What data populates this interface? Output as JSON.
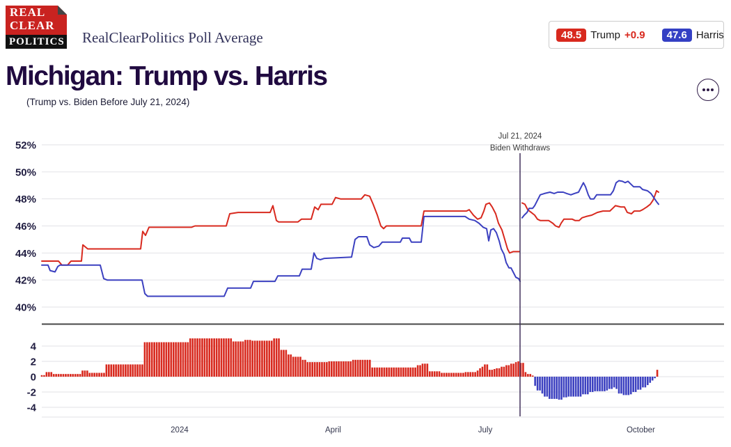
{
  "header": {
    "logo": {
      "line1": "REAL",
      "line2": "CLEAR",
      "line3": "POLITICS"
    },
    "masthead": "RealClearPolitics Poll Average",
    "legend": {
      "trump_value": "48.5",
      "trump_label": "Trump",
      "trump_lead": "+0.9",
      "harris_value": "47.6",
      "harris_label": "Harris"
    }
  },
  "title": "Michigan: Trump vs. Harris",
  "title_note": "(Trump vs. Biden Before July 21, 2024)",
  "colors": {
    "trump": "#d8291e",
    "harris": "#3b40c0",
    "grid": "#e2e2e6",
    "divider": "#474747",
    "event_line": "#40305a"
  },
  "chart_data": {
    "type": "line",
    "title": "Michigan: Trump vs. Harris poll average with spread bars",
    "legend_position": "top-right",
    "grid": true,
    "event_line": {
      "x": 0.701,
      "label_line1": "Jul 21, 2024",
      "label_line2": "Biden Withdraws"
    },
    "y_axis_main": {
      "ticks": [
        "52%",
        "50%",
        "48%",
        "46%",
        "44%",
        "42%",
        "40%"
      ],
      "values": [
        52,
        50,
        48,
        46,
        44,
        42,
        40
      ],
      "range": [
        40,
        52
      ]
    },
    "y_axis_spread": {
      "ticks": [
        "4",
        "2",
        "0",
        "-2",
        "-4"
      ],
      "values": [
        4,
        2,
        0,
        -2,
        -4
      ],
      "range": [
        -5,
        6
      ]
    },
    "x_axis": {
      "labels": [
        {
          "text": "2024",
          "x": 0.202
        },
        {
          "text": "April",
          "x": 0.427
        },
        {
          "text": "July",
          "x": 0.65
        },
        {
          "text": "October",
          "x": 0.878
        }
      ]
    },
    "series": [
      {
        "name": "Trump (vs. Biden, before Jul 21)",
        "color_key": "trump",
        "points": [
          [
            0.0,
            43.4
          ],
          [
            0.0245,
            43.4
          ],
          [
            0.0296,
            43.1
          ],
          [
            0.0378,
            43.1
          ],
          [
            0.0429,
            43.4
          ],
          [
            0.0582,
            43.4
          ],
          [
            0.0602,
            44.6
          ],
          [
            0.0673,
            44.3
          ],
          [
            0.0918,
            44.3
          ],
          [
            0.1449,
            44.3
          ],
          [
            0.148,
            45.6
          ],
          [
            0.152,
            45.3
          ],
          [
            0.1571,
            45.9
          ],
          [
            0.2194,
            45.9
          ],
          [
            0.2245,
            46.0
          ],
          [
            0.2704,
            46.0
          ],
          [
            0.2755,
            46.9
          ],
          [
            0.2878,
            47.0
          ],
          [
            0.3347,
            47.0
          ],
          [
            0.3388,
            47.5
          ],
          [
            0.3439,
            46.4
          ],
          [
            0.3469,
            46.3
          ],
          [
            0.3755,
            46.3
          ],
          [
            0.3806,
            46.5
          ],
          [
            0.3949,
            46.5
          ],
          [
            0.4,
            47.4
          ],
          [
            0.4051,
            47.2
          ],
          [
            0.4092,
            47.6
          ],
          [
            0.4255,
            47.6
          ],
          [
            0.4306,
            48.1
          ],
          [
            0.4378,
            48.0
          ],
          [
            0.4684,
            48.0
          ],
          [
            0.4735,
            48.3
          ],
          [
            0.4806,
            48.2
          ],
          [
            0.4857,
            47.6
          ],
          [
            0.4918,
            46.8
          ],
          [
            0.4969,
            46.0
          ],
          [
            0.501,
            45.8
          ],
          [
            0.5051,
            46.0
          ],
          [
            0.5561,
            46.0
          ],
          [
            0.5602,
            47.1
          ],
          [
            0.6224,
            47.1
          ],
          [
            0.6265,
            47.2
          ],
          [
            0.6327,
            46.8
          ],
          [
            0.6388,
            46.5
          ],
          [
            0.6439,
            46.6
          ],
          [
            0.648,
            47.1
          ],
          [
            0.651,
            47.6
          ],
          [
            0.6561,
            47.7
          ],
          [
            0.6602,
            47.4
          ],
          [
            0.6653,
            46.9
          ],
          [
            0.6694,
            46.2
          ],
          [
            0.6745,
            45.7
          ],
          [
            0.6786,
            45.0
          ],
          [
            0.6827,
            44.3
          ],
          [
            0.6857,
            44.0
          ],
          [
            0.6908,
            44.1
          ],
          [
            0.7,
            44.1
          ]
        ]
      },
      {
        "name": "Trump (vs. Harris, after Jul 21)",
        "color_key": "trump",
        "points": [
          [
            0.7041,
            47.7
          ],
          [
            0.7082,
            47.6
          ],
          [
            0.7122,
            47.2
          ],
          [
            0.7173,
            47.0
          ],
          [
            0.7224,
            46.8
          ],
          [
            0.7265,
            46.5
          ],
          [
            0.7306,
            46.4
          ],
          [
            0.7429,
            46.4
          ],
          [
            0.749,
            46.2
          ],
          [
            0.7531,
            46.0
          ],
          [
            0.7582,
            45.9
          ],
          [
            0.7612,
            46.2
          ],
          [
            0.7653,
            46.5
          ],
          [
            0.7776,
            46.5
          ],
          [
            0.7816,
            46.4
          ],
          [
            0.7878,
            46.4
          ],
          [
            0.7918,
            46.6
          ],
          [
            0.798,
            46.7
          ],
          [
            0.8061,
            46.8
          ],
          [
            0.8143,
            47.0
          ],
          [
            0.8224,
            47.1
          ],
          [
            0.8327,
            47.1
          ],
          [
            0.8367,
            47.3
          ],
          [
            0.8408,
            47.5
          ],
          [
            0.849,
            47.4
          ],
          [
            0.8541,
            47.4
          ],
          [
            0.8582,
            47.0
          ],
          [
            0.8643,
            46.9
          ],
          [
            0.8684,
            47.1
          ],
          [
            0.8765,
            47.1
          ],
          [
            0.8806,
            47.2
          ],
          [
            0.8867,
            47.4
          ],
          [
            0.8918,
            47.6
          ],
          [
            0.8959,
            47.9
          ],
          [
            0.899,
            48.3
          ],
          [
            0.901,
            48.6
          ],
          [
            0.9041,
            48.5
          ]
        ]
      },
      {
        "name": "Biden (before Jul 21)",
        "color_key": "harris",
        "points": [
          [
            0.0,
            43.1
          ],
          [
            0.0092,
            43.1
          ],
          [
            0.0122,
            42.7
          ],
          [
            0.0194,
            42.6
          ],
          [
            0.0235,
            43.0
          ],
          [
            0.0265,
            43.1
          ],
          [
            0.0857,
            43.1
          ],
          [
            0.0908,
            42.1
          ],
          [
            0.0959,
            42.0
          ],
          [
            0.1469,
            42.0
          ],
          [
            0.151,
            41.0
          ],
          [
            0.1551,
            40.8
          ],
          [
            0.2673,
            40.8
          ],
          [
            0.2724,
            41.4
          ],
          [
            0.3061,
            41.4
          ],
          [
            0.3102,
            41.9
          ],
          [
            0.3418,
            41.9
          ],
          [
            0.3459,
            42.3
          ],
          [
            0.3776,
            42.3
          ],
          [
            0.3816,
            42.8
          ],
          [
            0.3949,
            42.8
          ],
          [
            0.399,
            44.0
          ],
          [
            0.4031,
            43.6
          ],
          [
            0.4082,
            43.5
          ],
          [
            0.4143,
            43.6
          ],
          [
            0.4541,
            43.7
          ],
          [
            0.4592,
            45.0
          ],
          [
            0.4643,
            45.2
          ],
          [
            0.4765,
            45.2
          ],
          [
            0.4806,
            44.6
          ],
          [
            0.4867,
            44.4
          ],
          [
            0.4939,
            44.5
          ],
          [
            0.499,
            44.8
          ],
          [
            0.5255,
            44.8
          ],
          [
            0.5286,
            45.1
          ],
          [
            0.5388,
            45.1
          ],
          [
            0.5418,
            44.8
          ],
          [
            0.5561,
            44.8
          ],
          [
            0.5602,
            46.7
          ],
          [
            0.6204,
            46.7
          ],
          [
            0.6265,
            46.5
          ],
          [
            0.6347,
            46.4
          ],
          [
            0.6408,
            46.2
          ],
          [
            0.6469,
            45.9
          ],
          [
            0.652,
            45.8
          ],
          [
            0.6551,
            44.9
          ],
          [
            0.6582,
            45.7
          ],
          [
            0.6622,
            45.8
          ],
          [
            0.6663,
            45.5
          ],
          [
            0.6704,
            44.9
          ],
          [
            0.6735,
            44.3
          ],
          [
            0.6776,
            43.9
          ],
          [
            0.6806,
            43.3
          ],
          [
            0.6847,
            42.9
          ],
          [
            0.6878,
            42.9
          ],
          [
            0.6908,
            42.6
          ],
          [
            0.6949,
            42.2
          ],
          [
            0.699,
            42.1
          ],
          [
            0.701,
            41.9
          ]
        ]
      },
      {
        "name": "Harris (after Jul 21)",
        "color_key": "harris",
        "points": [
          [
            0.7041,
            46.6
          ],
          [
            0.7071,
            46.8
          ],
          [
            0.7112,
            47.0
          ],
          [
            0.7143,
            47.3
          ],
          [
            0.7194,
            47.3
          ],
          [
            0.7224,
            47.5
          ],
          [
            0.7265,
            47.9
          ],
          [
            0.7306,
            48.3
          ],
          [
            0.7367,
            48.4
          ],
          [
            0.7449,
            48.5
          ],
          [
            0.751,
            48.4
          ],
          [
            0.7561,
            48.5
          ],
          [
            0.7643,
            48.5
          ],
          [
            0.7694,
            48.4
          ],
          [
            0.7755,
            48.3
          ],
          [
            0.7806,
            48.4
          ],
          [
            0.7867,
            48.5
          ],
          [
            0.7908,
            48.9
          ],
          [
            0.7939,
            49.2
          ],
          [
            0.7969,
            48.9
          ],
          [
            0.801,
            48.3
          ],
          [
            0.8041,
            48.0
          ],
          [
            0.8092,
            48.0
          ],
          [
            0.8133,
            48.3
          ],
          [
            0.8337,
            48.3
          ],
          [
            0.8378,
            48.6
          ],
          [
            0.8418,
            49.2
          ],
          [
            0.8459,
            49.35
          ],
          [
            0.851,
            49.3
          ],
          [
            0.8551,
            49.2
          ],
          [
            0.8592,
            49.3
          ],
          [
            0.8633,
            49.1
          ],
          [
            0.8673,
            48.9
          ],
          [
            0.8765,
            48.9
          ],
          [
            0.8806,
            48.7
          ],
          [
            0.8878,
            48.6
          ],
          [
            0.8929,
            48.4
          ],
          [
            0.8969,
            48.1
          ],
          [
            0.901,
            47.8
          ],
          [
            0.9041,
            47.6
          ]
        ]
      }
    ],
    "spread": {
      "name": "Trump spread (Trump minus opponent)",
      "end_x": 0.9031,
      "keyframes": [
        [
          0.0,
          0.2
        ],
        [
          0.0041,
          0.6
        ],
        [
          0.0143,
          0.35
        ],
        [
          0.0582,
          0.8
        ],
        [
          0.0694,
          0.5
        ],
        [
          0.0939,
          1.6
        ],
        [
          0.148,
          4.5
        ],
        [
          0.2173,
          5.0
        ],
        [
          0.2806,
          4.6
        ],
        [
          0.2959,
          4.8
        ],
        [
          0.3082,
          4.7
        ],
        [
          0.3378,
          5.0
        ],
        [
          0.35,
          3.5
        ],
        [
          0.3592,
          2.9
        ],
        [
          0.3684,
          2.6
        ],
        [
          0.3796,
          2.2
        ],
        [
          0.3888,
          1.9
        ],
        [
          0.4184,
          2.0
        ],
        [
          0.4541,
          2.2
        ],
        [
          0.4816,
          1.2
        ],
        [
          0.549,
          1.5
        ],
        [
          0.5571,
          1.7
        ],
        [
          0.5684,
          0.7
        ],
        [
          0.5847,
          0.5
        ],
        [
          0.6204,
          0.6
        ],
        [
          0.6357,
          0.8
        ],
        [
          0.6408,
          1.1
        ],
        [
          0.6449,
          1.3
        ],
        [
          0.649,
          1.6
        ],
        [
          0.6531,
          0.9
        ],
        [
          0.6612,
          1.0
        ],
        [
          0.6663,
          1.1
        ],
        [
          0.6724,
          1.3
        ],
        [
          0.6796,
          1.5
        ],
        [
          0.6867,
          1.7
        ],
        [
          0.6929,
          1.9
        ],
        [
          0.6969,
          2.0
        ],
        [
          0.702,
          1.8
        ],
        [
          0.7071,
          0.6
        ],
        [
          0.7122,
          0.35
        ],
        [
          0.7163,
          0.15
        ],
        [
          0.7204,
          -1.2
        ],
        [
          0.7255,
          -1.8
        ],
        [
          0.7306,
          -2.2
        ],
        [
          0.7357,
          -2.6
        ],
        [
          0.7429,
          -2.9
        ],
        [
          0.7551,
          -3.0
        ],
        [
          0.7622,
          -2.7
        ],
        [
          0.7694,
          -2.6
        ],
        [
          0.7918,
          -2.3
        ],
        [
          0.801,
          -2.0
        ],
        [
          0.8082,
          -1.9
        ],
        [
          0.8276,
          -1.8
        ],
        [
          0.8316,
          -1.6
        ],
        [
          0.8357,
          -1.4
        ],
        [
          0.8418,
          -1.6
        ],
        [
          0.8459,
          -2.2
        ],
        [
          0.851,
          -2.4
        ],
        [
          0.8612,
          -2.3
        ],
        [
          0.8663,
          -2.0
        ],
        [
          0.8724,
          -1.7
        ],
        [
          0.8786,
          -1.4
        ],
        [
          0.8847,
          -1.1
        ],
        [
          0.8898,
          -0.8
        ],
        [
          0.8939,
          -0.5
        ],
        [
          0.8969,
          -0.2
        ],
        [
          0.899,
          0.9
        ]
      ]
    }
  }
}
